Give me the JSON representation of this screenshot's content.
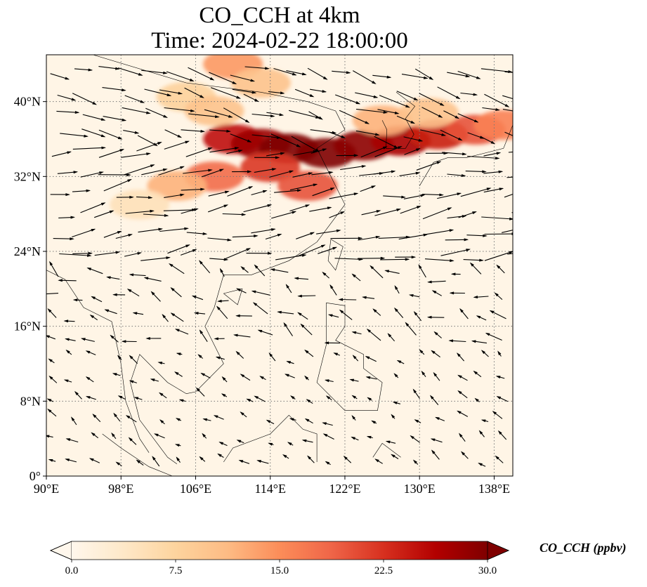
{
  "title_line1": "CO_CCH at 4km",
  "title_line2": "Time: 2024-02-22 18:00:00",
  "map": {
    "lon_range": [
      90,
      140
    ],
    "lat_range": [
      0,
      45
    ],
    "lon_ticks": [
      {
        "value": 90,
        "label": "90°E"
      },
      {
        "value": 98,
        "label": "98°E"
      },
      {
        "value": 106,
        "label": "106°E"
      },
      {
        "value": 114,
        "label": "114°E"
      },
      {
        "value": 122,
        "label": "122°E"
      },
      {
        "value": 130,
        "label": "130°E"
      },
      {
        "value": 138,
        "label": "138°E"
      }
    ],
    "lat_ticks": [
      {
        "value": 0,
        "label": "0°"
      },
      {
        "value": 8,
        "label": "8°N"
      },
      {
        "value": 16,
        "label": "16°N"
      },
      {
        "value": 24,
        "label": "24°N"
      },
      {
        "value": 32,
        "label": "32°N"
      },
      {
        "value": 40,
        "label": "40°N"
      }
    ],
    "gridlines": true,
    "background_color": "#fff5e6",
    "wind_arrow_color": "#000000"
  },
  "colorbar": {
    "label": "CO_CCH (ppbv)",
    "ticks": [
      0.0,
      7.5,
      15.0,
      22.5,
      30.0
    ],
    "tick_labels": [
      "0.0",
      "7.5",
      "15.0",
      "22.5",
      "30.0"
    ],
    "min": 0,
    "max": 30,
    "extend": "both",
    "colormap": "OrRd",
    "colors": [
      "#fff7ec",
      "#fee8c8",
      "#fdd49e",
      "#fdbb84",
      "#fc8d59",
      "#ef6548",
      "#d7301f",
      "#b30000",
      "#7f0000"
    ]
  }
}
